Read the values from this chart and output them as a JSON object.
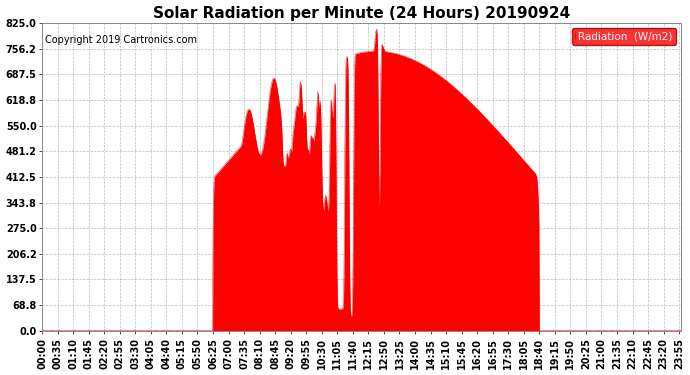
{
  "title": "Solar Radiation per Minute (24 Hours) 20190924",
  "copyright": "Copyright 2019 Cartronics.com",
  "legend_label": "Radiation  (W/m2)",
  "ylabel_values": [
    0.0,
    68.8,
    137.5,
    206.2,
    275.0,
    343.8,
    412.5,
    481.2,
    550.0,
    618.8,
    687.5,
    756.2,
    825.0
  ],
  "ylim": [
    0.0,
    825.0
  ],
  "fill_color": "#FF0000",
  "line_color": "#FF0000",
  "background_color": "#FFFFFF",
  "plot_bg_color": "#FFFFFF",
  "grid_color": "#AAAAAA",
  "zero_line_color": "#FF0000",
  "title_fontsize": 11,
  "copyright_fontsize": 7,
  "tick_fontsize": 7,
  "xlim": [
    0,
    1439
  ],
  "xtick_step": 35
}
